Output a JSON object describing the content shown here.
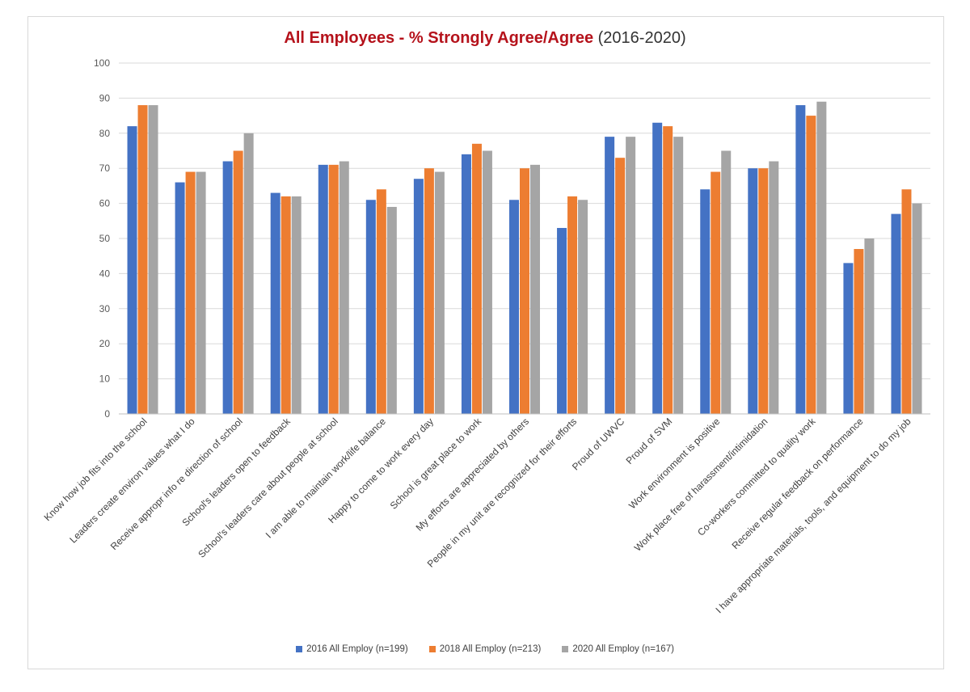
{
  "colors": {
    "series_2016": "#4472c4",
    "series_2018": "#ed7d31",
    "series_2020": "#a5a5a5",
    "title_accent": "#b5121b",
    "grid": "#d9d9d9"
  },
  "chart_data": {
    "type": "bar",
    "title": "All Employees - % Strongly Agree/Agree",
    "subtitle": "(2016-2020)",
    "xlabel": "",
    "ylabel": "",
    "ylim": [
      0,
      100
    ],
    "yticks": [
      0,
      10,
      20,
      30,
      40,
      50,
      60,
      70,
      80,
      90,
      100
    ],
    "grid": true,
    "legend_position": "bottom",
    "categories": [
      "Know how job fits into the school",
      "Leaders create environ values what I do",
      "Receive appropr info re direction of school",
      "School's leaders open to feedback",
      "School's leaders care about people at school",
      "I am able to maintain work/life balance",
      "Happy to come to work every day",
      "School is great place to work",
      "My efforts are appreciated by others",
      "People in my unit are recognized for their efforts",
      "Proud of UWVC",
      "Proud of SVM",
      "Work environment is positive",
      "Work place free of harassment/intimidation",
      "Co-workers committed to quality work",
      "Receive regular feedback on performance",
      "I have appropriate materials, tools, and equipment to do my job"
    ],
    "series": [
      {
        "name": "2016 All Employ (n=199)",
        "values": [
          82,
          66,
          72,
          63,
          71,
          61,
          67,
          74,
          61,
          53,
          79,
          83,
          64,
          70,
          88,
          43,
          57
        ]
      },
      {
        "name": "2018 All Employ (n=213)",
        "values": [
          88,
          69,
          75,
          62,
          71,
          64,
          70,
          77,
          70,
          62,
          73,
          82,
          69,
          70,
          85,
          47,
          64
        ]
      },
      {
        "name": "2020 All Employ (n=167)",
        "values": [
          88,
          69,
          80,
          62,
          72,
          59,
          69,
          75,
          71,
          61,
          79,
          79,
          75,
          72,
          89,
          50,
          60
        ]
      }
    ]
  }
}
